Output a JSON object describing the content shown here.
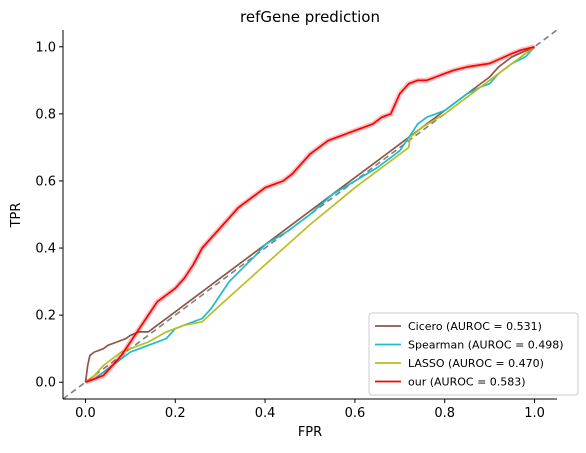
{
  "chart_data": {
    "type": "line",
    "title": "refGene prediction",
    "xlabel": "FPR",
    "ylabel": "TPR",
    "xlim": [
      -0.05,
      1.05
    ],
    "ylim": [
      -0.05,
      1.05
    ],
    "xticks": [
      "0.0",
      "0.2",
      "0.4",
      "0.6",
      "0.8",
      "1.0"
    ],
    "yticks": [
      "0.0",
      "0.2",
      "0.4",
      "0.6",
      "0.8",
      "1.0"
    ],
    "grid": false,
    "legend_position": "lower-right",
    "reference_line": {
      "x": [
        -0.05,
        1.05
      ],
      "y": [
        -0.05,
        1.05
      ],
      "style": "dashed",
      "color": "#808080"
    },
    "series": [
      {
        "name": "Cicero (AUROC = 0.531)",
        "color": "#8c564b",
        "x": [
          0.0,
          0.005,
          0.01,
          0.02,
          0.03,
          0.04,
          0.05,
          0.07,
          0.09,
          0.1,
          0.12,
          0.14,
          0.16,
          0.2,
          0.3,
          0.4,
          0.5,
          0.6,
          0.7,
          0.8,
          0.9,
          0.92,
          0.95,
          1.0
        ],
        "y": [
          0.0,
          0.05,
          0.08,
          0.09,
          0.095,
          0.1,
          0.11,
          0.12,
          0.13,
          0.14,
          0.15,
          0.15,
          0.17,
          0.21,
          0.31,
          0.41,
          0.51,
          0.61,
          0.71,
          0.81,
          0.91,
          0.94,
          0.97,
          1.0
        ]
      },
      {
        "name": "Spearman (AUROC = 0.498)",
        "color": "#17becf",
        "x": [
          0.0,
          0.02,
          0.04,
          0.06,
          0.08,
          0.1,
          0.12,
          0.14,
          0.16,
          0.18,
          0.2,
          0.22,
          0.24,
          0.26,
          0.28,
          0.3,
          0.32,
          0.35,
          0.38,
          0.4,
          0.45,
          0.5,
          0.55,
          0.6,
          0.65,
          0.7,
          0.72,
          0.74,
          0.76,
          0.78,
          0.8,
          0.82,
          0.85,
          0.88,
          0.9,
          0.92,
          0.95,
          0.98,
          1.0
        ],
        "y": [
          0.0,
          0.01,
          0.03,
          0.05,
          0.07,
          0.09,
          0.1,
          0.11,
          0.12,
          0.13,
          0.16,
          0.17,
          0.18,
          0.19,
          0.22,
          0.26,
          0.3,
          0.34,
          0.38,
          0.41,
          0.45,
          0.5,
          0.56,
          0.6,
          0.64,
          0.69,
          0.73,
          0.77,
          0.79,
          0.8,
          0.81,
          0.83,
          0.86,
          0.88,
          0.89,
          0.92,
          0.95,
          0.97,
          1.0
        ]
      },
      {
        "name": "LASSO (AUROC = 0.470)",
        "color": "#bcbd22",
        "x": [
          0.0,
          0.02,
          0.04,
          0.06,
          0.08,
          0.1,
          0.14,
          0.18,
          0.22,
          0.26,
          0.3,
          0.4,
          0.5,
          0.6,
          0.72,
          0.723,
          0.75,
          0.8,
          0.85,
          0.9,
          0.95,
          1.0
        ],
        "y": [
          0.0,
          0.02,
          0.05,
          0.07,
          0.09,
          0.1,
          0.12,
          0.15,
          0.17,
          0.18,
          0.23,
          0.35,
          0.47,
          0.58,
          0.7,
          0.73,
          0.76,
          0.8,
          0.85,
          0.9,
          0.95,
          1.0
        ]
      },
      {
        "name": "our (AUROC = 0.583)",
        "color": "#ff0000",
        "x": [
          0.0,
          0.02,
          0.04,
          0.06,
          0.08,
          0.1,
          0.12,
          0.14,
          0.16,
          0.18,
          0.2,
          0.22,
          0.24,
          0.26,
          0.28,
          0.3,
          0.32,
          0.34,
          0.36,
          0.38,
          0.4,
          0.42,
          0.44,
          0.46,
          0.48,
          0.5,
          0.52,
          0.54,
          0.56,
          0.58,
          0.6,
          0.62,
          0.64,
          0.66,
          0.68,
          0.7,
          0.72,
          0.74,
          0.76,
          0.78,
          0.8,
          0.82,
          0.85,
          0.9,
          0.95,
          0.97,
          1.0
        ],
        "y": [
          0.0,
          0.01,
          0.02,
          0.05,
          0.08,
          0.12,
          0.16,
          0.2,
          0.24,
          0.26,
          0.28,
          0.31,
          0.35,
          0.4,
          0.43,
          0.46,
          0.49,
          0.52,
          0.54,
          0.56,
          0.58,
          0.59,
          0.6,
          0.62,
          0.65,
          0.68,
          0.7,
          0.72,
          0.73,
          0.74,
          0.75,
          0.76,
          0.77,
          0.79,
          0.8,
          0.86,
          0.89,
          0.9,
          0.9,
          0.91,
          0.92,
          0.93,
          0.94,
          0.95,
          0.98,
          0.99,
          1.0
        ]
      }
    ]
  }
}
